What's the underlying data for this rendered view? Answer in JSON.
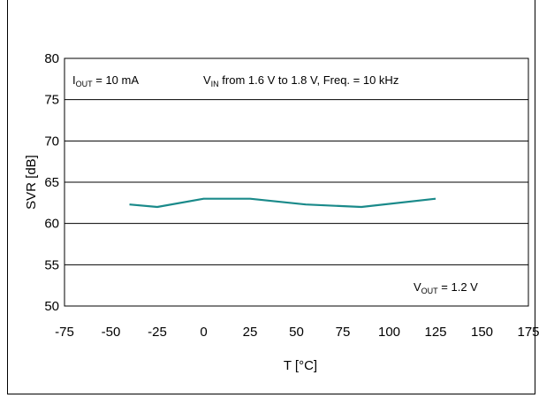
{
  "chart_data": {
    "type": "line",
    "title": "",
    "xlabel": "T [°C]",
    "ylabel": "SVR [dB]",
    "xlim": [
      -75,
      175
    ],
    "ylim": [
      50,
      80
    ],
    "x_ticks": [
      "-75",
      "-50",
      "-25",
      "0",
      "25",
      "50",
      "75",
      "100",
      "125",
      "150",
      "175"
    ],
    "y_ticks": [
      "50",
      "55",
      "60",
      "65",
      "70",
      "75",
      "80"
    ],
    "grid": "horizontal",
    "series": [
      {
        "color": "#1a8a8a",
        "x": [
          -40,
          -25,
          0,
          25,
          55,
          85,
          125
        ],
        "y": [
          62.3,
          62.0,
          63.0,
          63.0,
          62.3,
          62.0,
          63.0
        ]
      }
    ],
    "annotations": {
      "iout": {
        "main": "I",
        "sub": "OUT",
        "rest": " = 10 mA"
      },
      "vin": {
        "main": "V",
        "sub": "IN",
        "rest": " from 1.6 V to 1.8 V, Freq. = 10 kHz"
      },
      "vout": {
        "main": "V",
        "sub": "OUT",
        "rest": " = 1.2 V"
      }
    }
  }
}
